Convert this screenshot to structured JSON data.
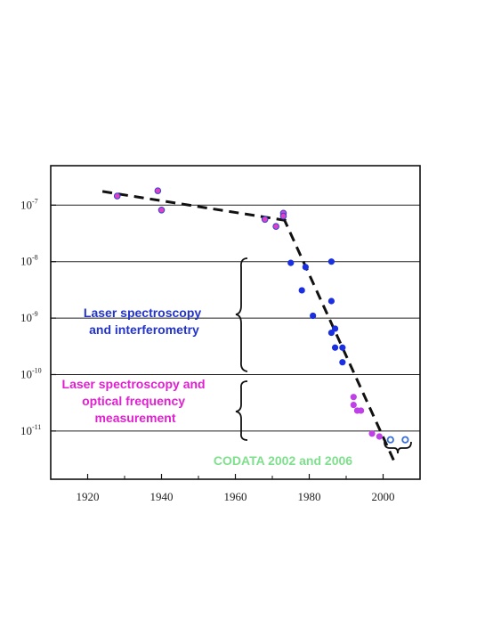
{
  "chart_data": {
    "type": "scatter",
    "title": "",
    "xlabel": "",
    "ylabel": "",
    "y_scale": "log",
    "xlim": [
      1910,
      2010
    ],
    "ylim": [
      1.4e-12,
      5e-07
    ],
    "grid": "horizontal",
    "x_ticks": [
      "1920",
      "1940",
      "1960",
      "1980",
      "2000"
    ],
    "x_tick_values": [
      1920,
      1940,
      1960,
      1980,
      2000
    ],
    "y_ticks": [
      {
        "value": 1e-07,
        "base": "10",
        "exp": "-7"
      },
      {
        "value": 1e-08,
        "base": "10",
        "exp": "-8"
      },
      {
        "value": 1e-09,
        "base": "10",
        "exp": "-9"
      },
      {
        "value": 1e-10,
        "base": "10",
        "exp": "-10"
      },
      {
        "value": 1e-11,
        "base": "10",
        "exp": "-11"
      }
    ],
    "colors": {
      "early": "#e040c8",
      "early_edge": "#3344cc",
      "laser_interferometry": "#1a2fe0",
      "optical_frequency": "#c040e8",
      "codata": "#3a6fd8"
    },
    "series": [
      {
        "group": "early",
        "style": "filled",
        "x": [
          1928,
          1939,
          1940,
          1968,
          1971,
          1973,
          1973
        ],
        "y": [
          1.45e-07,
          1.8e-07,
          8.2e-08,
          5.6e-08,
          4.2e-08,
          7.2e-08,
          6.4e-08
        ]
      },
      {
        "group": "laser_interferometry",
        "style": "filled",
        "x": [
          1975,
          1978,
          1979,
          1981,
          1986,
          1986,
          1986,
          1987,
          1987,
          1989,
          1989
        ],
        "y": [
          9.5e-09,
          3.1e-09,
          8e-09,
          1.1e-09,
          1e-08,
          2e-09,
          5.5e-10,
          6.5e-10,
          3e-10,
          3e-10,
          1.65e-10
        ]
      },
      {
        "group": "optical_frequency",
        "style": "filled",
        "x": [
          1992,
          1992,
          1993,
          1994,
          1997,
          1999
        ],
        "y": [
          4e-11,
          2.9e-11,
          2.3e-11,
          2.3e-11,
          9e-12,
          8e-12
        ]
      },
      {
        "group": "codata",
        "style": "open",
        "x": [
          2002,
          2006
        ],
        "y": [
          7e-12,
          7e-12
        ]
      }
    ],
    "trend_lines": [
      {
        "x": [
          1924,
          1975
        ],
        "y": [
          1.75e-07,
          5.2e-08
        ]
      },
      {
        "x": [
          1973,
          2003
        ],
        "y": [
          6e-08,
          2.9e-12
        ]
      }
    ],
    "annotations": [
      {
        "lines": [
          "Laser spectroscopy",
          "and interferometry"
        ],
        "color": "blue"
      },
      {
        "lines": [
          "Laser spectroscopy and",
          "optical frequency",
          "measurement"
        ],
        "color": "magenta"
      },
      {
        "lines": [
          "CODATA 2002 and 2006"
        ],
        "color": "green"
      }
    ]
  }
}
